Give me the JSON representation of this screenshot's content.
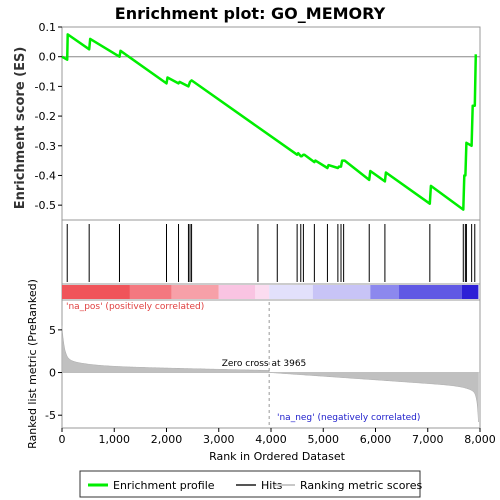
{
  "chart_data": {
    "type": "line",
    "title": "Enrichment plot: GO_MEMORY",
    "xlabel": "Rank in Ordered Dataset",
    "ylabel_top": "Enrichment score (ES)",
    "ylabel_bottom": "Ranked list metric (PreRanked)",
    "x_range": [
      0,
      8000
    ],
    "es_ylim": [
      -0.55,
      0.1
    ],
    "metric_ylim": [
      -6.5,
      8.5
    ],
    "x_ticks": [
      "0",
      "1,000",
      "2,000",
      "3,000",
      "4,000",
      "5,000",
      "6,000",
      "7,000",
      "8,000"
    ],
    "x_tick_values": [
      0,
      1000,
      2000,
      3000,
      4000,
      5000,
      6000,
      7000,
      8000
    ],
    "es_ticks": [
      "0.1",
      "0.0",
      "-0.1",
      "-0.2",
      "-0.3",
      "-0.4",
      "-0.5"
    ],
    "es_tick_values": [
      0.1,
      0.0,
      -0.1,
      -0.2,
      -0.3,
      -0.4,
      -0.5
    ],
    "metric_ticks": [
      "5",
      "0",
      "-5"
    ],
    "metric_tick_values": [
      5,
      0,
      -5
    ],
    "enrichment_profile": {
      "x": [
        0,
        100,
        110,
        520,
        540,
        1100,
        1120,
        2000,
        2020,
        2230,
        2250,
        2420,
        2450,
        2480,
        4500,
        4520,
        4570,
        4590,
        4620,
        4640,
        4830,
        4850,
        5080,
        5100,
        5280,
        5300,
        5340,
        5360,
        5390,
        5410,
        5880,
        5900,
        6180,
        6200,
        7040,
        7060,
        7680,
        7700,
        7720,
        7740,
        7840,
        7860,
        7900,
        7920
      ],
      "y": [
        0.0,
        -0.01,
        0.075,
        0.025,
        0.06,
        0.0,
        0.02,
        -0.09,
        -0.07,
        -0.09,
        -0.085,
        -0.1,
        -0.085,
        -0.08,
        -0.33,
        -0.325,
        -0.335,
        -0.335,
        -0.33,
        -0.33,
        -0.355,
        -0.35,
        -0.375,
        -0.365,
        -0.375,
        -0.37,
        -0.37,
        -0.35,
        -0.35,
        -0.35,
        -0.415,
        -0.385,
        -0.42,
        -0.39,
        -0.495,
        -0.435,
        -0.515,
        -0.4,
        -0.4,
        -0.29,
        -0.3,
        -0.165,
        -0.165,
        0.008
      ]
    },
    "hits": [
      100,
      520,
      1100,
      2000,
      2230,
      2420,
      2450,
      2480,
      3750,
      4120,
      4500,
      4570,
      4620,
      4830,
      5080,
      5280,
      5340,
      5390,
      5880,
      6180,
      7040,
      7680,
      7720,
      7740,
      7840,
      7900
    ],
    "zero_cross": 3965,
    "zero_cross_label": "Zero cross at 3965",
    "pos_label": "'na_pos' (positively correlated)",
    "neg_label": "'na_neg' (negatively correlated)",
    "heat_segments": [
      {
        "from": 0,
        "to": 1300,
        "color": "#f0545a"
      },
      {
        "from": 1300,
        "to": 2100,
        "color": "#f47880"
      },
      {
        "from": 2100,
        "to": 3000,
        "color": "#f7a0a8"
      },
      {
        "from": 3000,
        "to": 3700,
        "color": "#f9c4e2"
      },
      {
        "from": 3700,
        "to": 3965,
        "color": "#fbdcf0"
      },
      {
        "from": 3965,
        "to": 4800,
        "color": "#e2e0fb"
      },
      {
        "from": 4800,
        "to": 5900,
        "color": "#c8c4f6"
      },
      {
        "from": 5900,
        "to": 6450,
        "color": "#8c88ee"
      },
      {
        "from": 6450,
        "to": 7650,
        "color": "#6058e4"
      },
      {
        "from": 7650,
        "to": 7970,
        "color": "#2d1fd6"
      }
    ],
    "legend": [
      "Enrichment profile",
      "Hits",
      "Ranking metric scores"
    ],
    "colors": {
      "profile": "#00ee00",
      "hits": "#000000",
      "metric_fill": "#c0c0c0",
      "pos_text": "#e04040",
      "neg_text": "#2020cc"
    }
  }
}
